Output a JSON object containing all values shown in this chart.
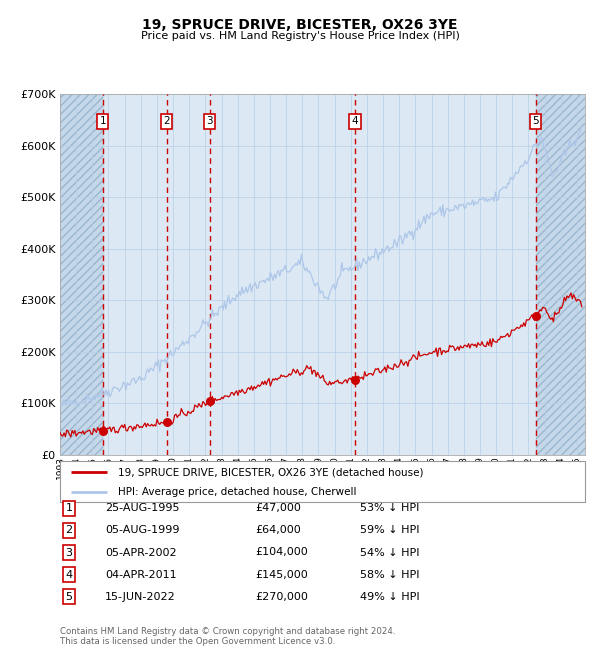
{
  "title": "19, SPRUCE DRIVE, BICESTER, OX26 3YE",
  "subtitle": "Price paid vs. HM Land Registry's House Price Index (HPI)",
  "hpi_color": "#aec6e8",
  "price_color": "#cc0000",
  "bg_color": "#dce9f5",
  "grid_color": "#b8cfe8",
  "transactions": [
    {
      "num": 1,
      "date": "25-AUG-1995",
      "year": 1995.65,
      "price": 47000,
      "pct": "53%"
    },
    {
      "num": 2,
      "date": "05-AUG-1999",
      "year": 1999.6,
      "price": 64000,
      "pct": "59%"
    },
    {
      "num": 3,
      "date": "05-APR-2002",
      "year": 2002.27,
      "price": 104000,
      "pct": "54%"
    },
    {
      "num": 4,
      "date": "04-APR-2011",
      "year": 2011.26,
      "price": 145000,
      "pct": "58%"
    },
    {
      "num": 5,
      "date": "15-JUN-2022",
      "year": 2022.45,
      "price": 270000,
      "pct": "49%"
    }
  ],
  "xmin": 1993.0,
  "xmax": 2025.5,
  "ymin": 0,
  "ymax": 700000,
  "yticks": [
    0,
    100000,
    200000,
    300000,
    400000,
    500000,
    600000,
    700000
  ],
  "footer_line1": "Contains HM Land Registry data © Crown copyright and database right 2024.",
  "footer_line2": "This data is licensed under the Open Government Licence v3.0.",
  "legend_label1": "19, SPRUCE DRIVE, BICESTER, OX26 3YE (detached house)",
  "legend_label2": "HPI: Average price, detached house, Cherwell"
}
